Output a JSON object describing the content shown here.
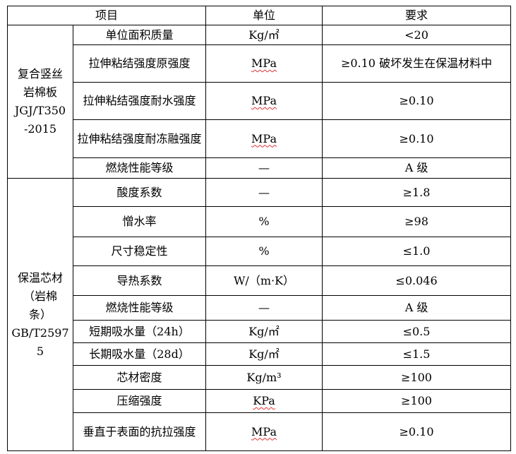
{
  "header": {
    "item": "项目",
    "unit": "单位",
    "requirement": "要求"
  },
  "groups": [
    {
      "label": "复合竖丝\n岩棉板\nJGJ/T350\n-2015",
      "rows": [
        {
          "item": "单位面积质量",
          "unit": "Kg/㎡",
          "req": "<20"
        },
        {
          "item": "拉伸粘结强度原强度",
          "unit": "MPa",
          "req": "≥0.10 破坏发生在保温材料中"
        },
        {
          "item": "拉伸粘结强度耐水强度",
          "unit": "MPa",
          "req": "≥0.10"
        },
        {
          "item": "拉伸粘结强度耐冻融强度",
          "unit": "MPa",
          "req": "≥0.10"
        },
        {
          "item": "燃烧性能等级",
          "unit": "—",
          "req": "A 级"
        }
      ]
    },
    {
      "label": "保温芯材\n（岩棉\n条）\nGB/T2597\n5",
      "rows": [
        {
          "item": "酸度系数",
          "unit": "—",
          "req": "≥1.8"
        },
        {
          "item": "憎水率",
          "unit": "%",
          "req": "≥98"
        },
        {
          "item": "尺寸稳定性",
          "unit": "%",
          "req": "≤1.0"
        },
        {
          "item": "导热系数",
          "unit": "W/（m·K）",
          "req": "≤0.046"
        },
        {
          "item": "燃烧性能等级",
          "unit": "—",
          "req": "A 级"
        },
        {
          "item": "短期吸水量（24h）",
          "unit": "Kg/㎡",
          "req": "≤0.5"
        },
        {
          "item": "长期吸水量（28d）",
          "unit": "Kg/㎡",
          "req": "≤1.5"
        },
        {
          "item": "芯材密度",
          "unit": "Kg/m³",
          "req": "≥100"
        },
        {
          "item": "压缩强度",
          "unit": "KPa",
          "req": "≥100"
        },
        {
          "item": "垂直于表面的抗拉强度",
          "unit": "MPa",
          "req": "≥0.10"
        }
      ]
    }
  ]
}
